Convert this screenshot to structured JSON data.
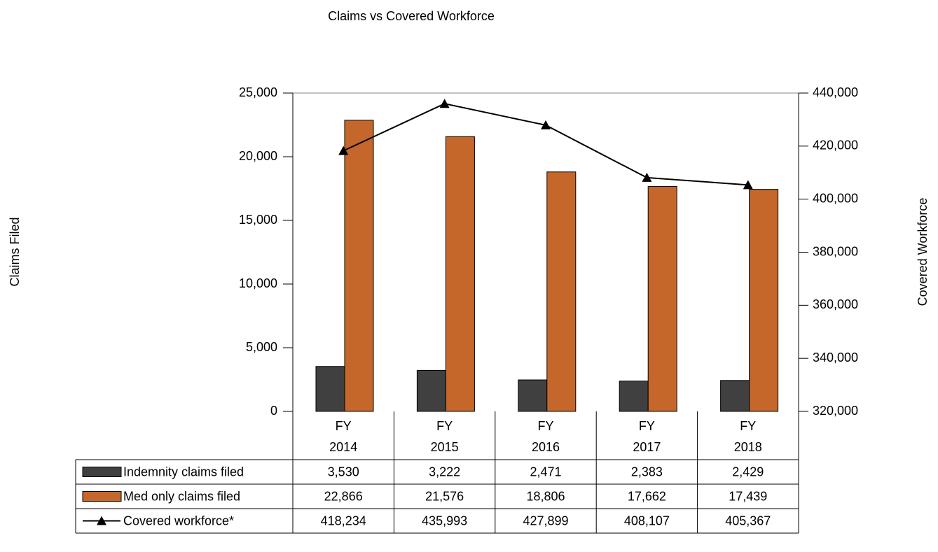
{
  "chart_data": {
    "type": "bar",
    "title": "Claims vs Covered Workforce",
    "y_label": "Claims Filed",
    "y2_label": "Covered Workforce",
    "categories": [
      "FY 2014",
      "FY 2015",
      "FY 2016",
      "FY 2017",
      "FY 2018"
    ],
    "series": [
      {
        "name": "Indemnity claims filed",
        "type": "bar",
        "color": "#404040",
        "values": [
          3530,
          3222,
          2471,
          2383,
          2429
        ],
        "value_labels": [
          "3,530",
          "3,222",
          "2,471",
          "2,383",
          "2,429"
        ]
      },
      {
        "name": "Med only claims filed",
        "type": "bar",
        "color": "#c5672a",
        "values": [
          22866,
          21576,
          18806,
          17662,
          17439
        ],
        "value_labels": [
          "22,866",
          "21,576",
          "18,806",
          "17,662",
          "17,439"
        ]
      },
      {
        "name": "Covered workforce*",
        "type": "line",
        "axis": "y2",
        "color": "#000000",
        "values": [
          418234,
          435993,
          427899,
          408107,
          405367
        ],
        "value_labels": [
          "418,234",
          "435,993",
          "427,899",
          "408,107",
          "405,367"
        ]
      }
    ],
    "ylim": [
      0,
      25000
    ],
    "yticks": [
      0,
      {
        "value": 5000,
        "label": "5,000"
      },
      {
        "value": 10000,
        "label": "10,000"
      },
      {
        "value": 15000,
        "label": "15,000"
      },
      {
        "value": 20000,
        "label": "20,000"
      },
      {
        "value": 25000,
        "label": "25,000"
      }
    ],
    "y2lim": [
      320000,
      440000
    ],
    "y2ticks": [
      {
        "value": 320000,
        "label": "320,000"
      },
      {
        "value": 340000,
        "label": "340,000"
      },
      {
        "value": 360000,
        "label": "360,000"
      },
      {
        "value": 380000,
        "label": "380,000"
      },
      {
        "value": 400000,
        "label": "400,000"
      },
      {
        "value": 420000,
        "label": "420,000"
      },
      {
        "value": 440000,
        "label": "440,000"
      }
    ]
  }
}
